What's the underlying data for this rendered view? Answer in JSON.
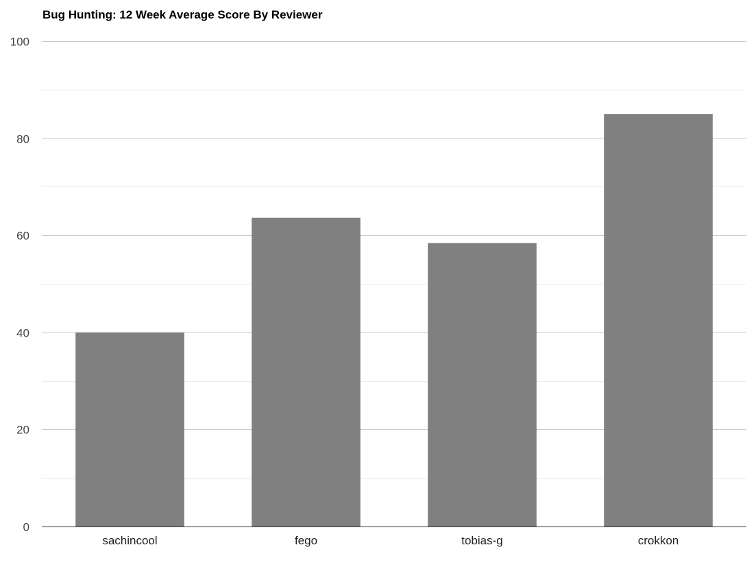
{
  "chart_data": {
    "type": "bar",
    "title": "Bug Hunting: 12 Week Average Score By Reviewer",
    "xlabel": "",
    "ylabel": "",
    "categories": [
      "sachincool",
      "fego",
      "tobias-g",
      "crokkon"
    ],
    "values": [
      40,
      63.6,
      58.4,
      85
    ],
    "ylim": [
      0,
      100
    ],
    "yticks": [
      0,
      20,
      40,
      60,
      80,
      100
    ],
    "ytick_labels": [
      "0",
      "20",
      "40",
      "60",
      "80",
      "100"
    ],
    "grid": true,
    "legend": "none",
    "colors": {
      "bar": "#808080",
      "major_grid": "#cccccc",
      "minor_grid": "#ebebeb",
      "axis": "#333333"
    }
  }
}
